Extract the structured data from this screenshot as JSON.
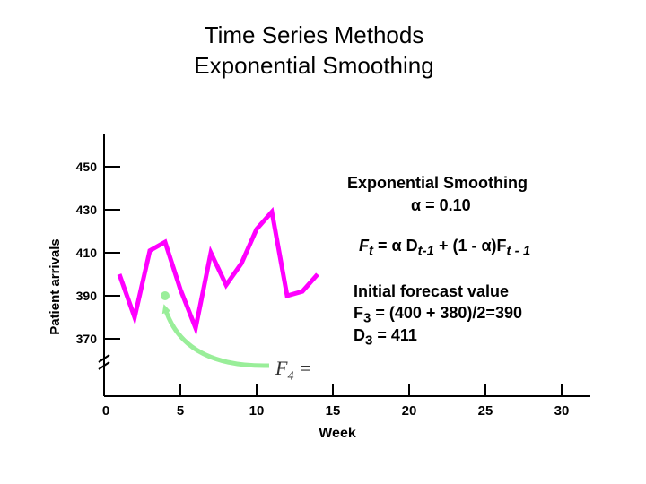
{
  "slide": {
    "title_line1": "Time Series Methods",
    "title_line2": "Exponential Smoothing"
  },
  "annotations": {
    "method_title": "Exponential Smoothing",
    "alpha_line": "α = 0.10",
    "formula": {
      "lhs": "F",
      "lhs_sub": "t",
      "eq": " = α D",
      "d_sub": "t-1",
      "mid": " + (1 - α)F",
      "f_sub": "t - 1"
    },
    "initial_title": "Initial forecast value",
    "f3_line": {
      "pre": "F",
      "sub": "3",
      "post": " = (400 + 380)/2=390"
    },
    "d3_line": {
      "pre": "D",
      "sub": "3",
      "post": " = 411"
    },
    "f4_label": {
      "pre": "F",
      "sub": "4",
      "post": " ="
    }
  },
  "colors": {
    "series": "#ff00ff",
    "forecast_point": "#99ee99",
    "arrow": "#99ee99",
    "axis": "#000000"
  },
  "chart_data": {
    "type": "line",
    "xlabel": "Week",
    "ylabel": "Patient arrivals",
    "x_ticks": [
      0,
      5,
      10,
      15,
      20,
      25,
      30
    ],
    "x_tick_labels": [
      "0",
      "5",
      "10",
      "15",
      "20",
      "25",
      "30"
    ],
    "y_ticks": [
      370,
      390,
      410,
      430,
      450
    ],
    "y_tick_labels": [
      "370",
      "390",
      "410",
      "430",
      "450"
    ],
    "xlim": [
      0,
      32
    ],
    "ylim": [
      360,
      460
    ],
    "axis_break": true,
    "series": [
      {
        "name": "Patient arrivals",
        "x": [
          1,
          2,
          3,
          4,
          5,
          6,
          7,
          8,
          9,
          10,
          11,
          12,
          13,
          14
        ],
        "y": [
          400,
          380,
          411,
          415,
          393,
          375,
          410,
          395,
          405,
          421,
          429,
          390,
          392,
          400
        ]
      }
    ],
    "forecast_point": {
      "week": 4,
      "value": 390
    }
  }
}
